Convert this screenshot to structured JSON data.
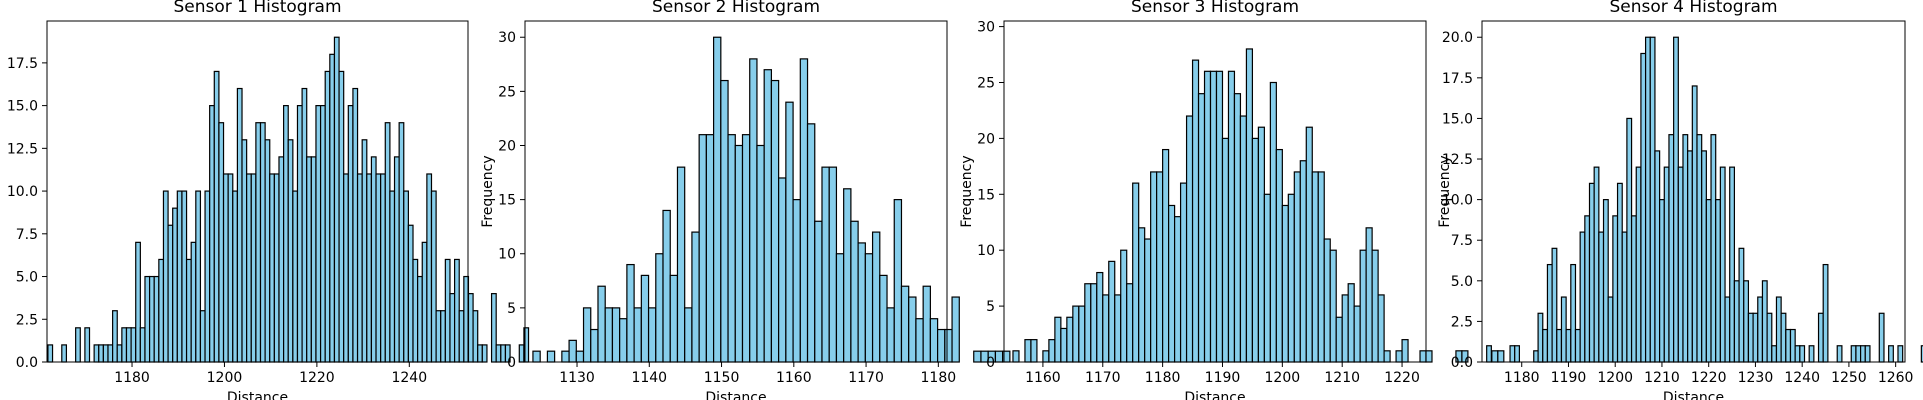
{
  "chart_data": [
    {
      "type": "bar",
      "title": "Sensor 1 Histogram",
      "xlabel": "Distance",
      "ylabel": "",
      "xlim": [
        1161.6,
        1252.7
      ],
      "ylim": [
        0,
        19.95
      ],
      "xticks": [
        1180,
        1200,
        1220,
        1240
      ],
      "yticks": [
        0.0,
        2.5,
        5.0,
        7.5,
        10.0,
        12.5,
        15.0,
        17.5
      ],
      "ytick_decimals": 1,
      "bin_start": 1161.8,
      "bin_width": 1.0,
      "values": [
        1,
        0,
        0,
        1,
        0,
        0,
        2,
        0,
        2,
        0,
        1,
        1,
        1,
        1,
        3,
        1,
        2,
        2,
        2,
        7,
        2,
        5,
        5,
        5,
        6,
        10,
        8,
        9,
        10,
        10,
        6,
        7,
        10,
        3,
        10,
        15,
        17,
        14,
        11,
        11,
        10,
        16,
        13,
        11,
        11,
        14,
        14,
        13,
        11,
        11,
        12,
        15,
        13,
        10,
        15,
        16,
        12,
        12,
        15,
        15,
        17,
        18,
        19,
        17,
        11,
        15,
        16,
        11,
        13,
        11,
        12,
        11,
        11,
        14,
        10,
        12,
        14,
        10,
        8,
        6,
        5,
        7,
        11,
        10,
        3,
        3,
        6,
        4,
        6,
        3,
        5,
        4,
        3,
        1,
        1,
        0,
        4,
        1,
        1,
        1,
        0,
        0,
        1,
        2
      ],
      "colors": {
        "bar_fill": "#87ceeb",
        "bar_edge": "#000000"
      }
    },
    {
      "type": "bar",
      "title": "Sensor 2 Histogram",
      "xlabel": "Distance",
      "ylabel": "Frequency",
      "xlim": [
        1122.8,
        1181.2
      ],
      "ylim": [
        0,
        31.5
      ],
      "xticks": [
        1130,
        1140,
        1150,
        1160,
        1170,
        1180
      ],
      "yticks": [
        0,
        5,
        10,
        15,
        20,
        25,
        30
      ],
      "ytick_decimals": 0,
      "bin_start": 1123.9,
      "bin_width": 1.0,
      "values": [
        1,
        0,
        1,
        0,
        1,
        2,
        1,
        5,
        3,
        7,
        5,
        5,
        4,
        9,
        5,
        8,
        5,
        10,
        14,
        8,
        18,
        5,
        12,
        21,
        21,
        30,
        26,
        21,
        20,
        21,
        28,
        20,
        27,
        26,
        17,
        24,
        15,
        28,
        22,
        13,
        18,
        18,
        10,
        16,
        13,
        11,
        10,
        12,
        8,
        5,
        15,
        7,
        6,
        4,
        7,
        4,
        3,
        3,
        6,
        0,
        0,
        1,
        1,
        1,
        1,
        1
      ],
      "colors": {
        "bar_fill": "#87ceeb",
        "bar_edge": "#000000"
      }
    },
    {
      "type": "bar",
      "title": "Sensor 3 Histogram",
      "xlabel": "Distance",
      "ylabel": "Frequency",
      "xlim": [
        1153.5,
        1224.0
      ],
      "ylim": [
        0,
        30.5
      ],
      "xticks": [
        1160,
        1170,
        1180,
        1190,
        1200,
        1210,
        1220
      ],
      "yticks": [
        0,
        5,
        10,
        15,
        20,
        25,
        30
      ],
      "ytick_decimals": 0,
      "bin_start": 1155.0,
      "bin_width": 1.0,
      "values": [
        1,
        0,
        2,
        2,
        0,
        1,
        2,
        4,
        3,
        4,
        5,
        5,
        7,
        7,
        8,
        6,
        9,
        6,
        10,
        7,
        16,
        12,
        11,
        17,
        17,
        19,
        14,
        13,
        16,
        22,
        27,
        24,
        26,
        26,
        26,
        20,
        26,
        24,
        22,
        28,
        20,
        21,
        15,
        25,
        19,
        14,
        15,
        17,
        18,
        21,
        17,
        17,
        11,
        10,
        4,
        6,
        7,
        5,
        10,
        12,
        10,
        6,
        1,
        0,
        1,
        2,
        0,
        0,
        1,
        1,
        0,
        0,
        0,
        0,
        1,
        1,
        0,
        0,
        0,
        0,
        1,
        1,
        0,
        0,
        0,
        0,
        0,
        1,
        1
      ],
      "colors": {
        "bar_fill": "#87ceeb",
        "bar_edge": "#000000"
      }
    },
    {
      "type": "bar",
      "title": "Sensor 4 Histogram",
      "xlabel": "Distance",
      "ylabel": "Frequency",
      "xlim": [
        1171.5,
        1262.0
      ],
      "ylim": [
        0,
        21.0
      ],
      "xticks": [
        1180,
        1190,
        1200,
        1210,
        1220,
        1230,
        1240,
        1250,
        1260
      ],
      "yticks": [
        0.0,
        2.5,
        5.0,
        7.5,
        10.0,
        12.5,
        15.0,
        17.5,
        20.0
      ],
      "ytick_decimals": 1,
      "bin_start": 1172.5,
      "bin_width": 1.0,
      "values": [
        1,
        0,
        0,
        0,
        0,
        1,
        1,
        0,
        0,
        0,
        0,
        3,
        2,
        6,
        7,
        2,
        4,
        2,
        6,
        2,
        8,
        9,
        11,
        12,
        8,
        10,
        4,
        9,
        11,
        8,
        15,
        9,
        12,
        19,
        20,
        20,
        13,
        10,
        12,
        14,
        20,
        12,
        14,
        13,
        17,
        14,
        13,
        10,
        14,
        10,
        12,
        4,
        12,
        5,
        7,
        5,
        3,
        3,
        4,
        5,
        3,
        1,
        4,
        3,
        2,
        2,
        1,
        1,
        0,
        1,
        0,
        3,
        6,
        0,
        0,
        1,
        0,
        0,
        1,
        1,
        1,
        1,
        0,
        0,
        3,
        0,
        1,
        0,
        1,
        0,
        0,
        0,
        0,
        1
      ],
      "colors": {
        "bar_fill": "#87ceeb",
        "bar_edge": "#000000"
      }
    }
  ]
}
